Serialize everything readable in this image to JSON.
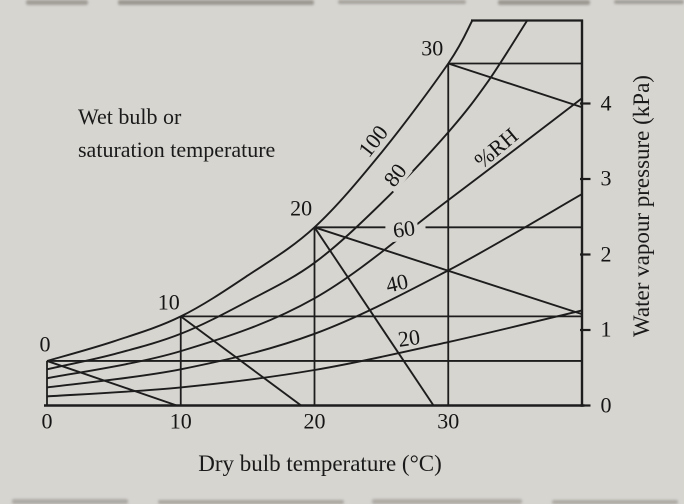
{
  "page": {
    "background_color": "#d7d5d0",
    "line_color": "#1d1d1d"
  },
  "annotations": {
    "wet_bulb_note_line1": "Wet bulb or",
    "wet_bulb_note_line2": "saturation temperature"
  },
  "chart_data": {
    "type": "line",
    "title": "",
    "xlabel": "Dry bulb temperature (°C)",
    "ylabel": "Water vapour pressure (kPa)",
    "x_axis": {
      "ticks": [
        0,
        10,
        20,
        30
      ],
      "range": [
        0,
        40
      ],
      "unit": "°C"
    },
    "y_axis": {
      "ticks": [
        0,
        1,
        2,
        3,
        4
      ],
      "range": [
        0,
        5.1
      ],
      "unit": "kPa",
      "side": "right"
    },
    "grid": "partial",
    "legend_position": "none",
    "rh_curves": [
      {
        "label": "100",
        "points": [
          [
            0,
            0.59
          ],
          [
            5,
            0.85
          ],
          [
            10,
            1.18
          ],
          [
            15,
            1.72
          ],
          [
            20,
            2.36
          ],
          [
            25,
            3.35
          ],
          [
            30,
            4.53
          ],
          [
            31.8,
            5.1
          ]
        ]
      },
      {
        "label": "80",
        "points": [
          [
            0,
            0.48
          ],
          [
            5,
            0.68
          ],
          [
            10,
            0.95
          ],
          [
            15,
            1.38
          ],
          [
            20,
            1.89
          ],
          [
            25,
            2.68
          ],
          [
            30,
            3.62
          ],
          [
            33,
            4.3
          ],
          [
            35.9,
            5.1
          ]
        ]
      },
      {
        "label": "60",
        "points": [
          [
            0,
            0.36
          ],
          [
            10,
            0.72
          ],
          [
            20,
            1.42
          ],
          [
            30,
            2.72
          ],
          [
            40,
            4.07
          ]
        ]
      },
      {
        "label": "40",
        "points": [
          [
            0,
            0.24
          ],
          [
            10,
            0.48
          ],
          [
            20,
            0.95
          ],
          [
            30,
            1.79
          ],
          [
            40,
            2.8
          ]
        ]
      },
      {
        "label": "20",
        "points": [
          [
            0,
            0.12
          ],
          [
            10,
            0.24
          ],
          [
            20,
            0.47
          ],
          [
            30,
            0.84
          ],
          [
            40,
            1.26
          ]
        ]
      }
    ],
    "wet_bulb_lines": [
      {
        "label": "0",
        "from": [
          0,
          0.59
        ],
        "to": [
          9.7,
          0
        ]
      },
      {
        "label": "10",
        "from": [
          10,
          1.18
        ],
        "to": [
          19,
          0
        ]
      },
      {
        "label": "20",
        "from": [
          20,
          2.36
        ],
        "to": [
          28.9,
          0
        ]
      },
      {
        "label": "30",
        "from": [
          30,
          4.53
        ],
        "to": [
          40,
          3.95
        ]
      }
    ],
    "construction_lines": [
      {
        "from": [
          20,
          2.36
        ],
        "to": [
          40,
          1.21
        ]
      }
    ],
    "dew_point_horizontals": [
      {
        "e": 0.59,
        "segments": [
          [
            0,
            40
          ]
        ]
      },
      {
        "e": 1.18,
        "segments": [
          [
            10,
            40
          ]
        ]
      },
      {
        "e": 2.36,
        "segments": [
          [
            20,
            25.3
          ],
          [
            28.3,
            40
          ]
        ]
      },
      {
        "e": 4.53,
        "segments": [
          [
            30,
            40
          ]
        ]
      }
    ],
    "vertical_gridlines": [
      {
        "t": 0,
        "e_top": 0.59
      },
      {
        "t": 10,
        "e_top": 1.18
      },
      {
        "t": 20,
        "e_top": 2.36
      },
      {
        "t": 30,
        "e_top": 4.53
      }
    ],
    "curve_labels": [
      {
        "text": "100",
        "t": 24.4,
        "e": 3.5,
        "rot": -52,
        "patch": true,
        "name": "rh-label-100"
      },
      {
        "text": "80",
        "t": 26.0,
        "e": 3.05,
        "rot": -52,
        "patch": true,
        "name": "rh-label-80"
      },
      {
        "text": "%RH",
        "t": 33.6,
        "e": 3.41,
        "rot": -40,
        "patch": false,
        "name": "rh-family-label"
      },
      {
        "text": "60",
        "t": 26.7,
        "e": 2.34,
        "rot": -8,
        "patch": true,
        "name": "rh-label-60"
      },
      {
        "text": "40",
        "t": 26.2,
        "e": 1.62,
        "rot": -12,
        "patch": false,
        "name": "rh-label-40"
      },
      {
        "text": "20",
        "t": 27.1,
        "e": 0.9,
        "rot": -8,
        "patch": false,
        "name": "rh-label-20"
      }
    ],
    "wet_bulb_labels": [
      {
        "text": "0",
        "t": -0.15,
        "e": 0.82,
        "name": "wetbulb-label-0"
      },
      {
        "text": "10",
        "t": 9.1,
        "e": 1.37,
        "name": "wetbulb-label-10"
      },
      {
        "text": "20",
        "t": 19.0,
        "e": 2.61,
        "name": "wetbulb-label-20"
      },
      {
        "text": "30",
        "t": 28.8,
        "e": 4.73,
        "name": "wetbulb-label-30"
      }
    ]
  }
}
